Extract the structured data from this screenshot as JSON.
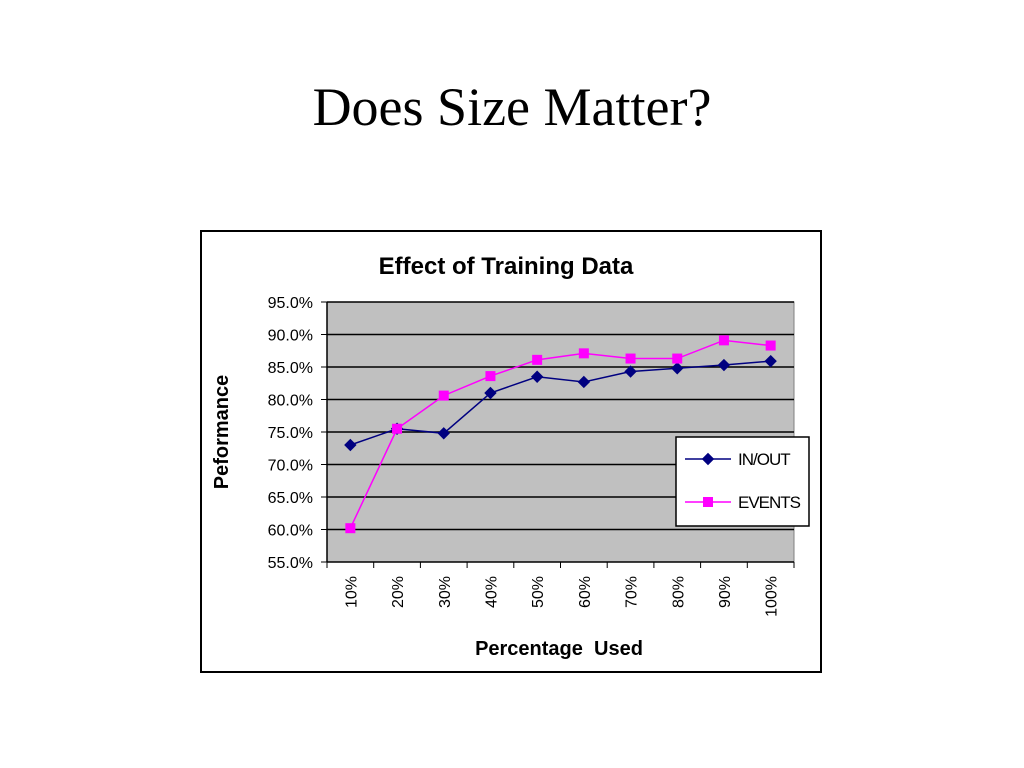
{
  "slide": {
    "title": "Does Size Matter?"
  },
  "chart_data": {
    "type": "line",
    "title": "Effect of Training Data",
    "xlabel": "Percentage  Used",
    "ylabel": "Peformance",
    "categories": [
      "10%",
      "20%",
      "30%",
      "40%",
      "50%",
      "60%",
      "70%",
      "80%",
      "90%",
      "100%"
    ],
    "ylim": [
      0.55,
      0.95
    ],
    "ytick_values": [
      0.55,
      0.6,
      0.65,
      0.7,
      0.75,
      0.8,
      0.85,
      0.9,
      0.95
    ],
    "ytick_labels": [
      "55.0%",
      "60.0%",
      "65.0%",
      "70.0%",
      "75.0%",
      "80.0%",
      "85.0%",
      "90.0%",
      "95.0%"
    ],
    "grid": true,
    "plot_background": "#c0c0c0",
    "legend_position": "right",
    "series": [
      {
        "name": "IN/OUT",
        "color": "#000080",
        "marker": "diamond",
        "values": [
          0.73,
          0.755,
          0.748,
          0.81,
          0.835,
          0.827,
          0.843,
          0.848,
          0.853,
          0.859
        ]
      },
      {
        "name": "EVENTS",
        "color": "#ff00ff",
        "marker": "square",
        "values": [
          0.602,
          0.755,
          0.806,
          0.836,
          0.861,
          0.871,
          0.863,
          0.863,
          0.891,
          0.883
        ]
      }
    ]
  }
}
